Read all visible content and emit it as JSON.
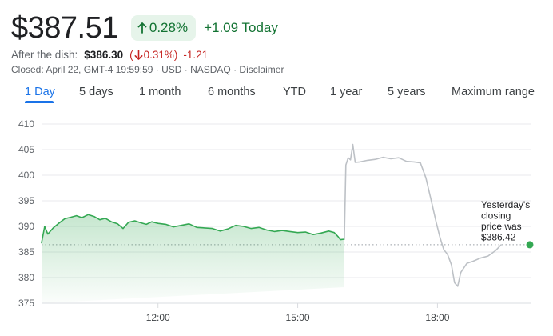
{
  "quote": {
    "price": "$387.51",
    "change_pct": "0.28%",
    "change_today": "+1.09 Today",
    "after_label": "After the dish:",
    "after_price": "$386.30",
    "after_pct_open": "(",
    "after_pct": "0.31%",
    "after_pct_close": ")",
    "after_change": "-1.21",
    "closed_line": "Closed: April 22, GMT-4 19:59:59 · USD · NASDAQ · Disclaimer"
  },
  "tabs": [
    {
      "label": "1 Day",
      "active": true
    },
    {
      "label": "5 days",
      "active": false
    },
    {
      "label": "1 month",
      "active": false
    },
    {
      "label": "6 months",
      "active": false
    },
    {
      "label": "YTD",
      "active": false
    },
    {
      "label": "1 year",
      "active": false
    },
    {
      "label": "5 years",
      "active": false
    },
    {
      "label": "Maximum range",
      "active": false
    }
  ],
  "colors": {
    "positive": "#137333",
    "negative": "#c5221f",
    "accent": "#1a73e8",
    "line_regular": "#34a853",
    "line_after_hours": "#bdc1c6"
  },
  "icons": {
    "up": "arrow-up-icon",
    "down": "arrow-down-icon"
  },
  "chart_data": {
    "type": "line",
    "ylim": [
      375,
      410
    ],
    "y_ticks": [
      410,
      405,
      400,
      395,
      390,
      385,
      380,
      375
    ],
    "x_domain": [
      "09:30",
      "20:00"
    ],
    "x_ticks": [
      "12:00",
      "15:00",
      "18:00"
    ],
    "previous_close": 386.42,
    "previous_close_label": [
      "Yesterday's",
      "closing",
      "price was",
      "$386.42"
    ],
    "series": [
      {
        "session": "regular",
        "points": [
          [
            "09:30",
            386.8
          ],
          [
            "09:34",
            390.0
          ],
          [
            "09:38",
            388.5
          ],
          [
            "09:45",
            389.7
          ],
          [
            "09:52",
            390.6
          ],
          [
            "10:00",
            391.5
          ],
          [
            "10:08",
            391.8
          ],
          [
            "10:15",
            392.1
          ],
          [
            "10:22",
            391.7
          ],
          [
            "10:30",
            392.3
          ],
          [
            "10:38",
            391.9
          ],
          [
            "10:45",
            391.3
          ],
          [
            "10:52",
            391.6
          ],
          [
            "11:00",
            390.9
          ],
          [
            "11:08",
            390.5
          ],
          [
            "11:15",
            389.6
          ],
          [
            "11:22",
            390.8
          ],
          [
            "11:30",
            391.1
          ],
          [
            "11:38",
            390.7
          ],
          [
            "11:45",
            390.4
          ],
          [
            "11:52",
            390.9
          ],
          [
            "12:00",
            390.6
          ],
          [
            "12:10",
            390.4
          ],
          [
            "12:20",
            389.9
          ],
          [
            "12:30",
            390.2
          ],
          [
            "12:40",
            390.5
          ],
          [
            "12:50",
            389.8
          ],
          [
            "13:00",
            389.7
          ],
          [
            "13:10",
            389.6
          ],
          [
            "13:20",
            389.1
          ],
          [
            "13:30",
            389.5
          ],
          [
            "13:40",
            390.2
          ],
          [
            "13:50",
            390.0
          ],
          [
            "14:00",
            389.6
          ],
          [
            "14:10",
            389.8
          ],
          [
            "14:20",
            389.3
          ],
          [
            "14:30",
            389.0
          ],
          [
            "14:40",
            389.2
          ],
          [
            "14:50",
            389.0
          ],
          [
            "15:00",
            388.8
          ],
          [
            "15:10",
            388.9
          ],
          [
            "15:20",
            388.4
          ],
          [
            "15:30",
            388.7
          ],
          [
            "15:40",
            389.1
          ],
          [
            "15:47",
            388.8
          ],
          [
            "15:52",
            388.0
          ],
          [
            "15:55",
            387.4
          ],
          [
            "16:00",
            387.5
          ]
        ]
      },
      {
        "session": "after_hours",
        "points": [
          [
            "16:00",
            387.5
          ],
          [
            "16:02",
            402.0
          ],
          [
            "16:05",
            403.4
          ],
          [
            "16:08",
            403.0
          ],
          [
            "16:11",
            406.0
          ],
          [
            "16:14",
            402.5
          ],
          [
            "16:20",
            402.6
          ],
          [
            "16:30",
            402.9
          ],
          [
            "16:40",
            403.1
          ],
          [
            "16:50",
            403.5
          ],
          [
            "17:00",
            403.2
          ],
          [
            "17:10",
            403.4
          ],
          [
            "17:20",
            402.7
          ],
          [
            "17:30",
            402.6
          ],
          [
            "17:38",
            402.4
          ],
          [
            "17:45",
            399.5
          ],
          [
            "17:52",
            395.0
          ],
          [
            "17:58",
            391.0
          ],
          [
            "18:03",
            388.0
          ],
          [
            "18:08",
            385.5
          ],
          [
            "18:13",
            384.5
          ],
          [
            "18:18",
            382.5
          ],
          [
            "18:22",
            379.0
          ],
          [
            "18:26",
            378.3
          ],
          [
            "18:30",
            381.0
          ],
          [
            "18:38",
            382.8
          ],
          [
            "18:46",
            383.2
          ],
          [
            "18:55",
            383.8
          ],
          [
            "19:05",
            384.2
          ],
          [
            "19:15",
            385.3
          ],
          [
            "19:22",
            386.4
          ]
        ]
      }
    ]
  }
}
